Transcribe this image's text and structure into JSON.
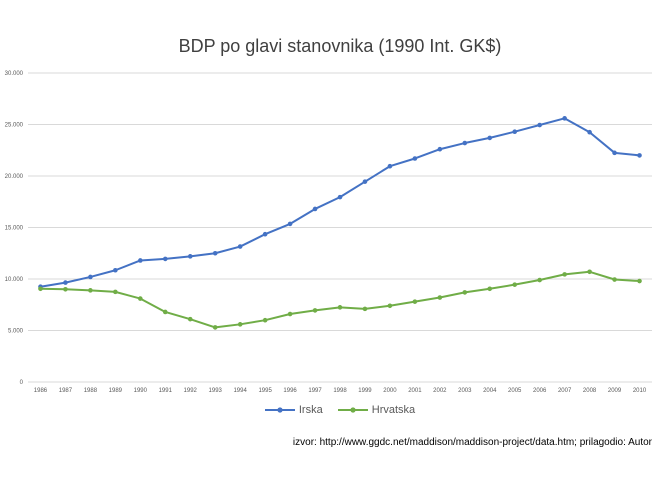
{
  "chart_data": {
    "type": "line",
    "title": "BDP po glavi stanovnika (1990 Int. GK$)",
    "xlabel": "",
    "ylabel": "",
    "ylim": [
      0,
      30000
    ],
    "yticks": [
      0,
      5000,
      10000,
      15000,
      20000,
      25000,
      30000
    ],
    "ytick_labels": [
      "0",
      "5.000",
      "10.000",
      "15.000",
      "20.000",
      "25.000",
      "30.000"
    ],
    "grid": true,
    "legend_position": "bottom",
    "categories": [
      "1986",
      "1987",
      "1988",
      "1989",
      "1990",
      "1991",
      "1992",
      "1993",
      "1994",
      "1995",
      "1996",
      "1997",
      "1998",
      "1999",
      "2000",
      "2001",
      "2002",
      "2003",
      "2004",
      "2005",
      "2006",
      "2007",
      "2008",
      "2009",
      "2010"
    ],
    "series": [
      {
        "name": "Irska",
        "color": "#4472c4",
        "values": [
          9250,
          9650,
          10200,
          10850,
          11800,
          11950,
          12200,
          12500,
          13150,
          14350,
          15350,
          16800,
          17950,
          19450,
          20950,
          21700,
          22600,
          23200,
          23700,
          24300,
          24950,
          25600,
          24250,
          22250,
          22000
        ]
      },
      {
        "name": "Hrvatska",
        "color": "#70ad47",
        "values": [
          9050,
          9000,
          8900,
          8750,
          8100,
          6800,
          6100,
          5300,
          5600,
          6000,
          6600,
          6950,
          7250,
          7100,
          7400,
          7800,
          8200,
          8700,
          9050,
          9450,
          9900,
          10450,
          10700,
          9950,
          9800
        ]
      }
    ]
  },
  "source_note": "izvor: http://www.ggdc.net/maddison/maddison-project/data.htm; prilagodio: Autor"
}
